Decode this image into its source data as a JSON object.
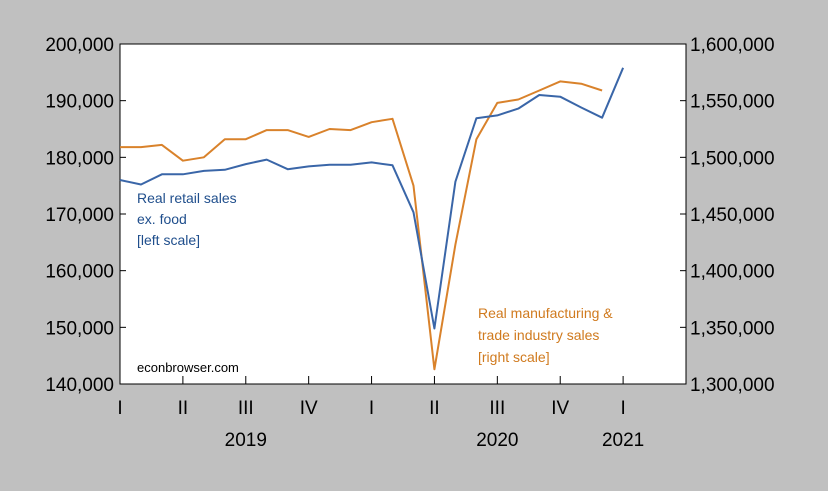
{
  "chart_data": {
    "type": "line",
    "colors": {
      "retail": "#3a66a8",
      "mfg": "#d9822b"
    },
    "left_axis": {
      "ylim": [
        140000,
        200000
      ],
      "ticks": [
        140000,
        150000,
        160000,
        170000,
        180000,
        190000,
        200000
      ],
      "tick_labels": [
        "140,000",
        "150,000",
        "160,000",
        "170,000",
        "180,000",
        "190,000",
        "200,000"
      ]
    },
    "right_axis": {
      "ylim": [
        1300000,
        1600000
      ],
      "ticks": [
        1300000,
        1350000,
        1400000,
        1450000,
        1500000,
        1550000,
        1600000
      ],
      "tick_labels": [
        "1,300,000",
        "1,350,000",
        "1,400,000",
        "1,450,000",
        "1,500,000",
        "1,550,000",
        "1,600,000"
      ]
    },
    "x_axis": {
      "start": "2019-01",
      "end": "2021-04",
      "quarter_labels": [
        {
          "date": "2019-01",
          "label": "I"
        },
        {
          "date": "2019-04",
          "label": "II"
        },
        {
          "date": "2019-07",
          "label": "III"
        },
        {
          "date": "2019-10",
          "label": "IV"
        },
        {
          "date": "2020-01",
          "label": "I"
        },
        {
          "date": "2020-04",
          "label": "II"
        },
        {
          "date": "2020-07",
          "label": "III"
        },
        {
          "date": "2020-10",
          "label": "IV"
        },
        {
          "date": "2021-01",
          "label": "I"
        }
      ],
      "year_labels": [
        {
          "date": "2019-07",
          "label": "2019"
        },
        {
          "date": "2020-07",
          "label": "2020"
        },
        {
          "date": "2021-01",
          "label": "2021"
        }
      ]
    },
    "series": [
      {
        "key": "retail",
        "axis": "left",
        "points": [
          [
            "2019-01",
            176000
          ],
          [
            "2019-02",
            175200
          ],
          [
            "2019-03",
            177000
          ],
          [
            "2019-04",
            177000
          ],
          [
            "2019-05",
            177600
          ],
          [
            "2019-06",
            177800
          ],
          [
            "2019-07",
            178800
          ],
          [
            "2019-08",
            179600
          ],
          [
            "2019-09",
            177900
          ],
          [
            "2019-10",
            178400
          ],
          [
            "2019-11",
            178700
          ],
          [
            "2019-12",
            178700
          ],
          [
            "2020-01",
            179100
          ],
          [
            "2020-02",
            178600
          ],
          [
            "2020-03",
            170300
          ],
          [
            "2020-04",
            149800
          ],
          [
            "2020-05",
            175700
          ],
          [
            "2020-06",
            186900
          ],
          [
            "2020-07",
            187400
          ],
          [
            "2020-08",
            188600
          ],
          [
            "2020-09",
            191000
          ],
          [
            "2020-10",
            190700
          ],
          [
            "2020-11",
            188800
          ],
          [
            "2020-12",
            187000
          ],
          [
            "2021-01",
            195800
          ]
        ]
      },
      {
        "key": "mfg",
        "axis": "right",
        "points": [
          [
            "2019-01",
            1509000
          ],
          [
            "2019-02",
            1509000
          ],
          [
            "2019-03",
            1511000
          ],
          [
            "2019-04",
            1497000
          ],
          [
            "2019-05",
            1500000
          ],
          [
            "2019-06",
            1516000
          ],
          [
            "2019-07",
            1516000
          ],
          [
            "2019-08",
            1524000
          ],
          [
            "2019-09",
            1524000
          ],
          [
            "2019-10",
            1518000
          ],
          [
            "2019-11",
            1525000
          ],
          [
            "2019-12",
            1524000
          ],
          [
            "2020-01",
            1531000
          ],
          [
            "2020-02",
            1534000
          ],
          [
            "2020-03",
            1475000
          ],
          [
            "2020-04",
            1313000
          ],
          [
            "2020-05",
            1423000
          ],
          [
            "2020-06",
            1516000
          ],
          [
            "2020-07",
            1548000
          ],
          [
            "2020-08",
            1551000
          ],
          [
            "2020-09",
            1559000
          ],
          [
            "2020-10",
            1567000
          ],
          [
            "2020-11",
            1565000
          ],
          [
            "2020-12",
            1559000
          ]
        ]
      }
    ],
    "annotations": {
      "retail": [
        "Real retail sales",
        "ex. food",
        "[left scale]"
      ],
      "mfg": [
        "Real manufacturing &",
        "trade industry sales",
        "[right scale]"
      ],
      "credit": "econbrowser.com"
    },
    "grid": false
  }
}
